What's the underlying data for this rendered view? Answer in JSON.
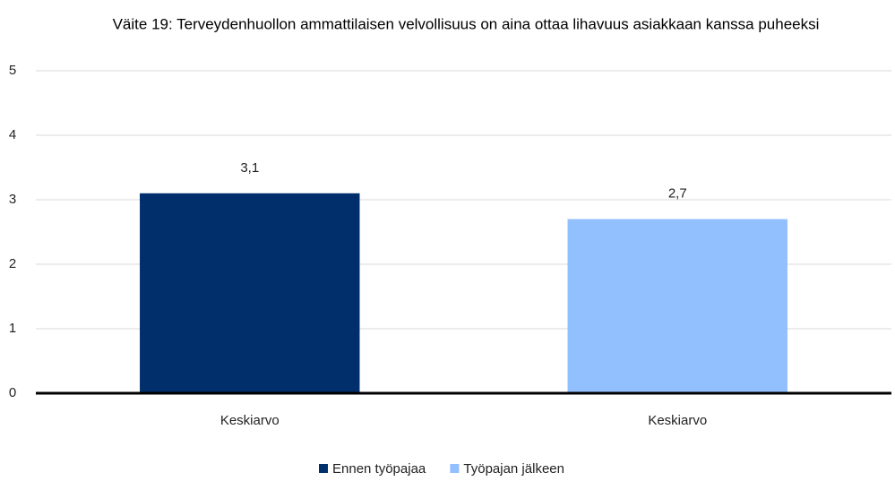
{
  "chart_data": {
    "type": "bar",
    "title": "Väite 19: Terveydenhuollon ammattilaisen velvollisuus on aina ottaa lihavuus asiakkaan kanssa puheeksi",
    "categories": [
      "Keskiarvo",
      "Keskiarvo"
    ],
    "series": [
      {
        "name": "Ennen työpajaa",
        "color": "#002f6c",
        "values": [
          3.1,
          null
        ],
        "value_labels": [
          "3,1",
          null
        ]
      },
      {
        "name": "Työpajan jälkeen",
        "color": "#92bffe",
        "values": [
          null,
          2.7
        ],
        "value_labels": [
          null,
          "2,7"
        ]
      }
    ],
    "ylim": [
      0,
      5
    ],
    "yticks": [
      0,
      1,
      2,
      3,
      4,
      5
    ],
    "grid": true,
    "legend": "bottom"
  }
}
